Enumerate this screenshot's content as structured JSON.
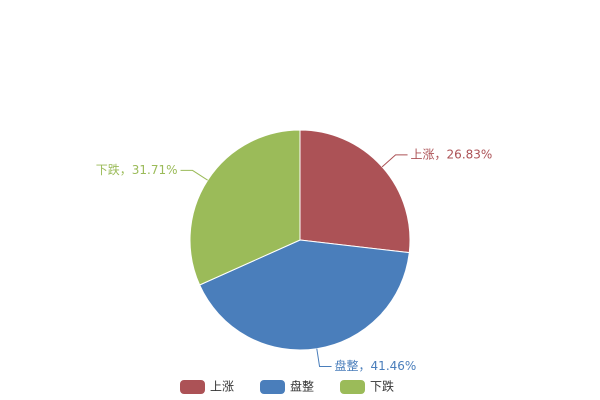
{
  "chart_data": {
    "type": "pie",
    "categories": [
      "上涨",
      "盘整",
      "下跌"
    ],
    "values": [
      26.83,
      41.46,
      31.71
    ],
    "value_labels": [
      "上涨，26.83%",
      "盘整，41.46%",
      "下跌，31.71%"
    ],
    "colors": [
      "#ac5256",
      "#4a7ebb",
      "#9bbb59"
    ],
    "legend": "bottom"
  }
}
